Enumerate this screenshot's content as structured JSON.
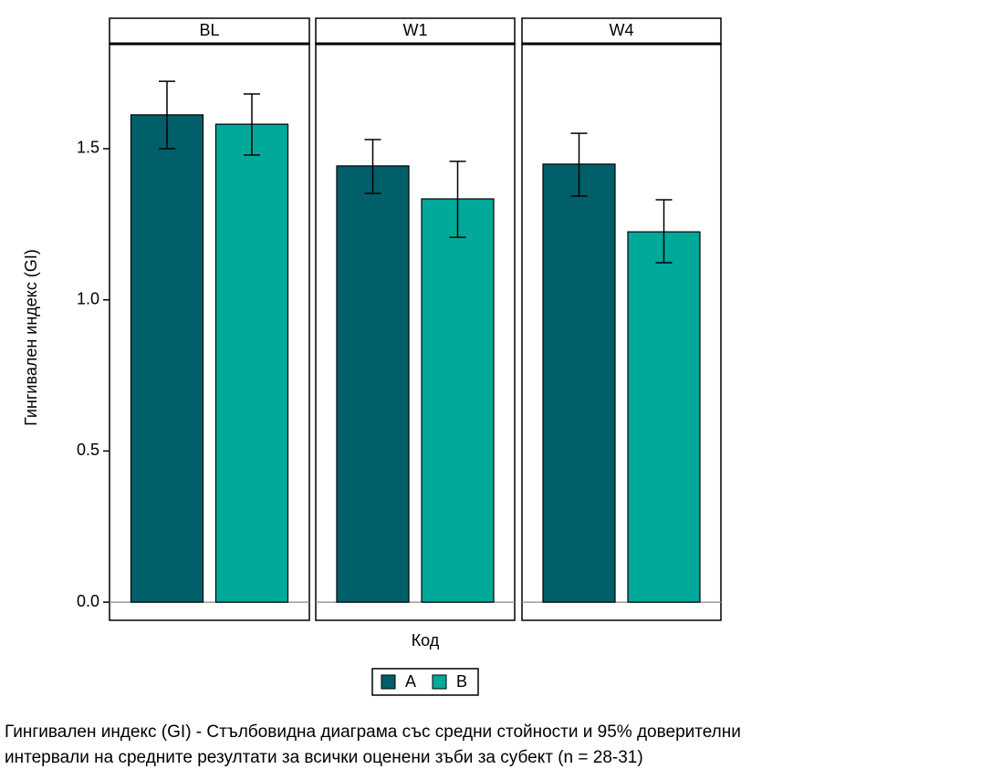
{
  "chart_data": {
    "type": "bar",
    "facets": [
      "BL",
      "W1",
      "W4"
    ],
    "series": [
      {
        "name": "A",
        "color": "#005f69",
        "values": [
          1.612,
          1.443,
          1.449
        ],
        "ci_lower": [
          1.5,
          1.352,
          1.343
        ],
        "ci_upper": [
          1.723,
          1.53,
          1.551
        ]
      },
      {
        "name": "B",
        "color": "#00a99a",
        "values": [
          1.581,
          1.334,
          1.225
        ],
        "ci_lower": [
          1.479,
          1.207,
          1.123
        ],
        "ci_upper": [
          1.681,
          1.458,
          1.331
        ]
      }
    ],
    "ylim": [
      -0.06,
      1.847
    ],
    "yticks": [
      {
        "value": 0,
        "label": "0.0"
      },
      0.5,
      {
        "value": 1,
        "label": "1.0"
      },
      1.5
    ],
    "ylabel": "Гингивален индекс (GI)",
    "xlabel": "Код",
    "caption": [
      "Гингивален индекс (GI) - Стълбовидна диаграма със средни стойности и 95% доверителни",
      "интервали на средните резултати за всички оценени зъби за субект (n = 28-31)"
    ]
  }
}
